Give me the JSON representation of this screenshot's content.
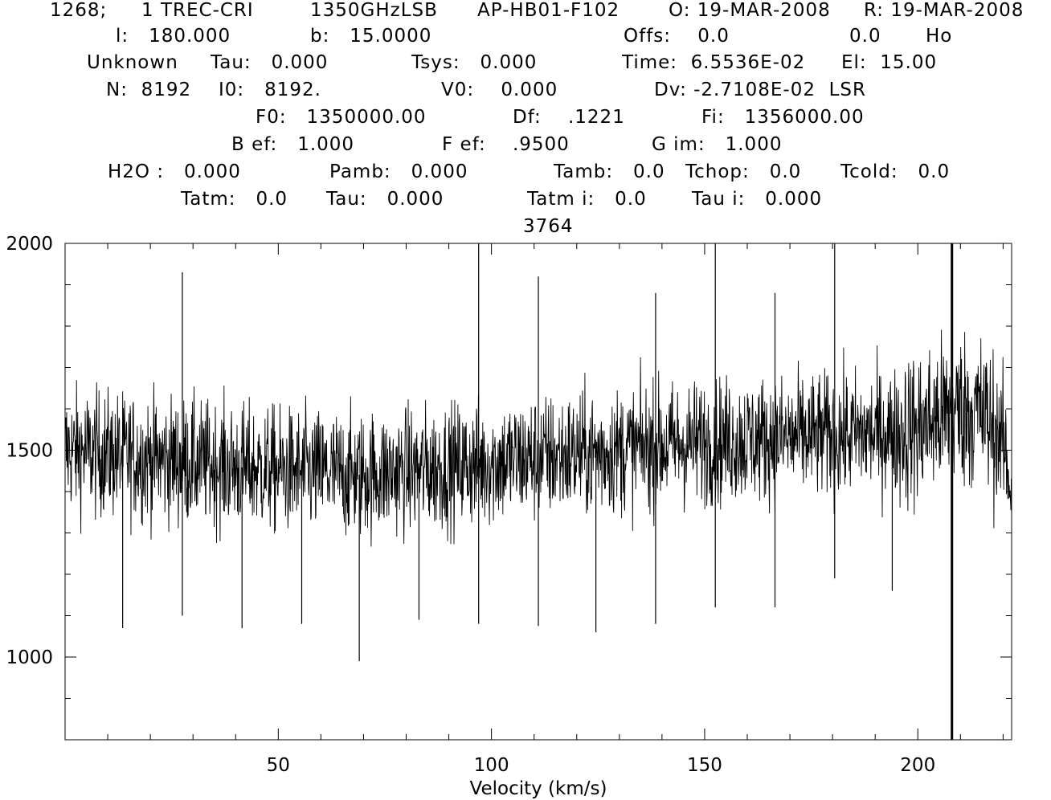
{
  "header": {
    "scan": "1268;",
    "ident": "1 TREC-CRI",
    "line": "1350GHzLSB",
    "telescope": "AP-HB01-F102",
    "obs_date": "O: 19-MAR-2008",
    "red_date": "R: 19-MAR-2008",
    "l": "l:   180.000",
    "b": "b:   15.0000",
    "offs": "Offs:    0.0",
    "offs2": "0.0",
    "ho": "Ho",
    "unknown": "Unknown",
    "tau": "Tau:   0.000",
    "tsys": "Tsys:   0.000",
    "time": "Time:  6.5536E-02",
    "el": "El:  15.00",
    "n": "N:  8192",
    "i0": "I0:   8192.",
    "v0": "V0:    0.000",
    "dv": "Dv: -2.7108E-02  LSR",
    "f0": "F0:   1350000.00",
    "df": "Df:    .1221",
    "fi": "Fi:   1356000.00",
    "beff": "B ef:   1.000",
    "feff": "F ef:    .9500",
    "gim": "G im:   1.000",
    "h2o": "H2O :   0.000",
    "pamb": "Pamb:   0.000",
    "tamb": "Tamb:   0.0",
    "tchop": "Tchop:   0.0",
    "tcold": "Tcold:   0.0",
    "tatm": "Tatm:   0.0",
    "tau2": "Tau:   0.000",
    "tatmi": "Tatm i:   0.0",
    "taui": "Tau i:   0.000",
    "panel_number": "3764"
  },
  "chart_data": {
    "type": "line",
    "title": "",
    "xlabel": "Velocity (km/s)",
    "ylabel": "",
    "xlim": [
      0,
      222
    ],
    "ylim": [
      800,
      2000
    ],
    "x_ticks": [
      50,
      100,
      150,
      200
    ],
    "x_tick_labels": [
      "50",
      "100",
      "150",
      "200"
    ],
    "y_ticks": [
      1000,
      1500,
      2000
    ],
    "y_tick_labels": [
      "1000",
      "1500",
      "2000"
    ],
    "grid": false,
    "marker_line_x": 208,
    "series": [
      {
        "x": [
          0,
          10,
          20,
          30,
          40,
          50,
          60,
          70,
          80,
          90,
          100,
          110,
          120,
          130,
          140,
          150,
          160,
          170,
          180,
          190,
          200,
          205,
          210,
          215,
          220,
          222
        ],
        "values": [
          1500,
          1490,
          1480,
          1470,
          1460,
          1450,
          1445,
          1440,
          1450,
          1460,
          1470,
          1480,
          1490,
          1500,
          1510,
          1520,
          1525,
          1530,
          1535,
          1540,
          1550,
          1580,
          1600,
          1590,
          1520,
          1400
        ]
      }
    ],
    "spikes": [
      {
        "x": 13.5,
        "y": 1070
      },
      {
        "x": 27.5,
        "y": 1930
      },
      {
        "x": 27.5,
        "y": 1100
      },
      {
        "x": 41.5,
        "y": 1070
      },
      {
        "x": 55.5,
        "y": 1080
      },
      {
        "x": 69.0,
        "y": 990
      },
      {
        "x": 83.0,
        "y": 1090
      },
      {
        "x": 97.0,
        "y": 2000
      },
      {
        "x": 97.0,
        "y": 1080
      },
      {
        "x": 111.0,
        "y": 1920
      },
      {
        "x": 111.0,
        "y": 1075
      },
      {
        "x": 124.5,
        "y": 1060
      },
      {
        "x": 138.5,
        "y": 1880
      },
      {
        "x": 138.5,
        "y": 1080
      },
      {
        "x": 152.5,
        "y": 2000
      },
      {
        "x": 152.5,
        "y": 1120
      },
      {
        "x": 166.5,
        "y": 1880
      },
      {
        "x": 166.5,
        "y": 1120
      },
      {
        "x": 180.5,
        "y": 2000
      },
      {
        "x": 180.5,
        "y": 1190
      },
      {
        "x": 194.0,
        "y": 1160
      }
    ]
  }
}
